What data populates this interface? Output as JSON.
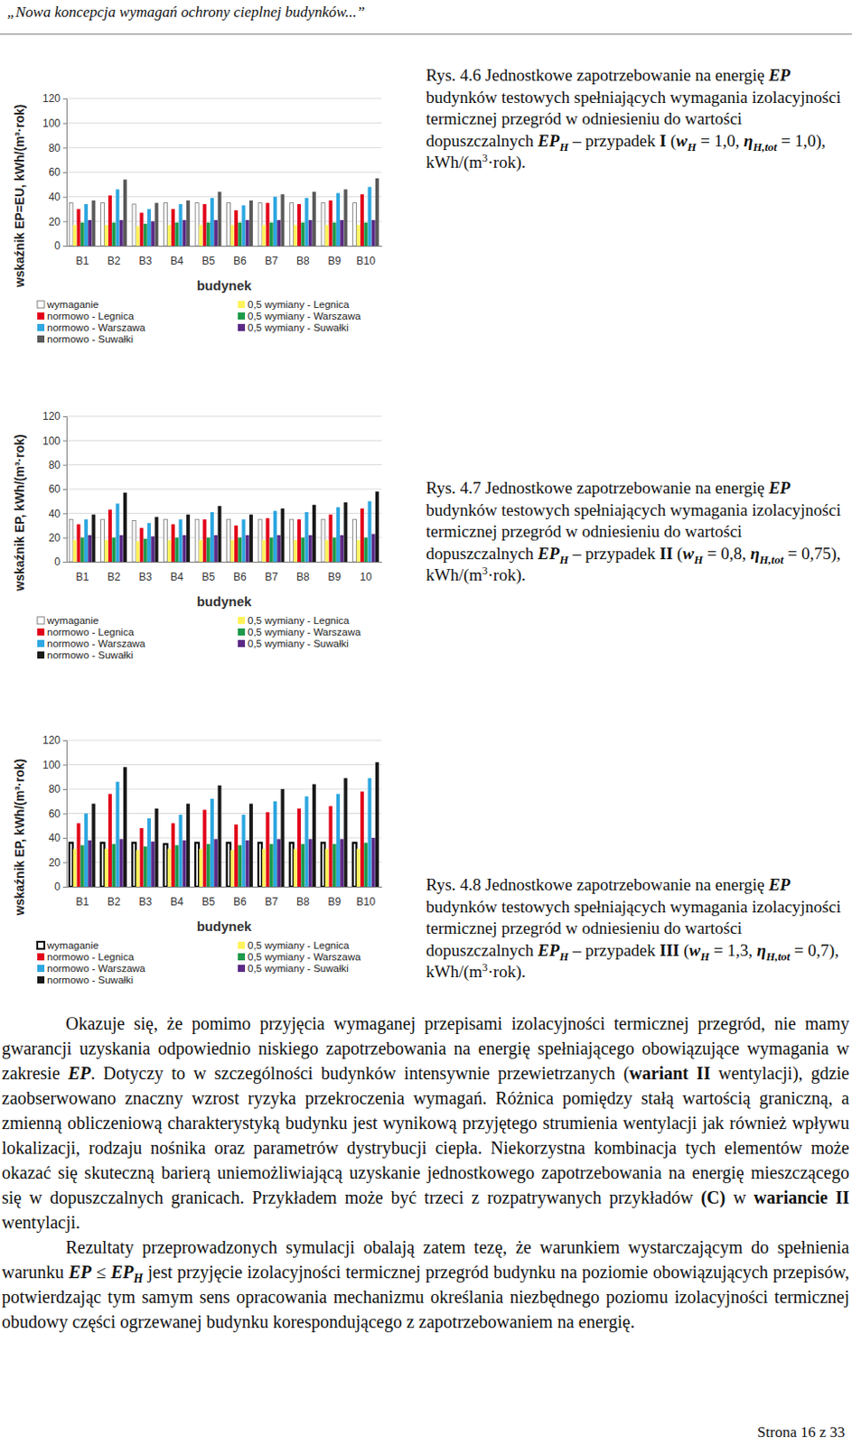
{
  "header": "„Nowa koncepcja wymagań ochrony cieplnej budynków...”",
  "chart_data": [
    {
      "type": "bar",
      "x_label": "budynek",
      "y_label": "wskaźnik EP=EU, kWh/(m³·rok)",
      "categories": [
        "B1",
        "B2",
        "B3",
        "B4",
        "B5",
        "B6",
        "B7",
        "B8",
        "B9",
        "B10"
      ],
      "ylim": [
        0,
        120
      ],
      "yticks": [
        0,
        20,
        40,
        60,
        80,
        100,
        120
      ],
      "grid": true,
      "legend": "bottom",
      "series": [
        {
          "name": "wymaganie",
          "color": "#ffffff",
          "values": [
            35,
            35,
            34,
            35,
            35,
            35,
            35,
            35,
            35,
            35
          ]
        },
        {
          "name": "normowo - Legnica",
          "color": "#e2001a",
          "values": [
            30,
            41,
            27,
            30,
            34,
            29,
            35,
            34,
            37,
            42
          ]
        },
        {
          "name": "normowo - Warszawa",
          "color": "#2ea7e0",
          "values": [
            34,
            46,
            30,
            34,
            39,
            33,
            40,
            39,
            43,
            48
          ]
        },
        {
          "name": "normowo - Suwałki",
          "color": "#5a5a5a",
          "values": [
            37,
            54,
            35,
            37,
            44,
            37,
            42,
            44,
            46,
            55
          ]
        },
        {
          "name": "0,5 wymiany - Legnica",
          "color": "#fff35c",
          "values": [
            17,
            17,
            16,
            17,
            17,
            17,
            17,
            17,
            17,
            17
          ]
        },
        {
          "name": "0,5 wymiany - Warszawa",
          "color": "#1e9a4b",
          "values": [
            19,
            19,
            18,
            19,
            19,
            19,
            19,
            19,
            19,
            19
          ]
        },
        {
          "name": "0,5 wymiany - Suwałki",
          "color": "#5b2a86",
          "values": [
            21,
            21,
            20,
            21,
            21,
            21,
            21,
            21,
            21,
            21
          ]
        }
      ]
    },
    {
      "type": "bar",
      "x_label": "budynek",
      "y_label": "wskaźnik EP, kWh/(m³·rok)",
      "categories": [
        "B1",
        "B2",
        "B3",
        "B4",
        "B5",
        "B6",
        "B7",
        "B8",
        "B9",
        "10"
      ],
      "ylim": [
        0,
        120
      ],
      "yticks": [
        0,
        20,
        40,
        60,
        80,
        100,
        120
      ],
      "grid": true,
      "legend": "bottom",
      "series": [
        {
          "name": "wymaganie",
          "color": "#ffffff",
          "values": [
            35,
            35,
            34,
            35,
            35,
            35,
            35,
            35,
            35,
            35
          ]
        },
        {
          "name": "normowo - Legnica",
          "color": "#e2001a",
          "values": [
            31,
            43,
            28,
            31,
            35,
            30,
            36,
            35,
            39,
            44
          ]
        },
        {
          "name": "normowo - Warszawa",
          "color": "#2ea7e0",
          "values": [
            35,
            48,
            32,
            35,
            41,
            35,
            42,
            41,
            45,
            50
          ]
        },
        {
          "name": "normowo - Suwałki",
          "color": "#1a1a1a",
          "values": [
            39,
            57,
            37,
            39,
            46,
            39,
            44,
            47,
            49,
            58
          ]
        },
        {
          "name": "0,5 wymiany - Legnica",
          "color": "#fff35c",
          "values": [
            18,
            18,
            17,
            18,
            18,
            18,
            18,
            18,
            18,
            18
          ]
        },
        {
          "name": "0,5 wymiany - Warszawa",
          "color": "#1e9a4b",
          "values": [
            20,
            20,
            19,
            20,
            20,
            20,
            20,
            20,
            20,
            20
          ]
        },
        {
          "name": "0,5 wymiany - Suwałki",
          "color": "#5b2a86",
          "values": [
            22,
            22,
            21,
            22,
            22,
            22,
            22,
            22,
            22,
            23
          ]
        }
      ]
    },
    {
      "type": "bar",
      "x_label": "budynek",
      "y_label": "wskaźnik EP, kWh/(m³·rok)",
      "categories": [
        "B1",
        "B2",
        "B3",
        "B4",
        "B5",
        "B6",
        "B7",
        "B8",
        "B9",
        "B10"
      ],
      "ylim": [
        0,
        120
      ],
      "yticks": [
        0,
        20,
        40,
        60,
        80,
        100,
        120
      ],
      "grid": true,
      "legend": "bottom",
      "series": [
        {
          "name": "wymaganie",
          "color": "#ffffff",
          "values": [
            36,
            36,
            36,
            35,
            36,
            36,
            36,
            36,
            36,
            36
          ]
        },
        {
          "name": "normowo - Legnica",
          "color": "#e2001a",
          "values": [
            52,
            76,
            48,
            52,
            63,
            51,
            61,
            64,
            66,
            78
          ]
        },
        {
          "name": "normowo - Warszawa",
          "color": "#2ea7e0",
          "values": [
            60,
            86,
            56,
            59,
            72,
            59,
            70,
            74,
            76,
            89
          ]
        },
        {
          "name": "normowo - Suwałki",
          "color": "#1a1a1a",
          "values": [
            68,
            98,
            64,
            68,
            83,
            68,
            80,
            84,
            89,
            102
          ]
        },
        {
          "name": "0,5 wymiany - Legnica",
          "color": "#fff35c",
          "values": [
            31,
            31,
            30,
            31,
            31,
            30,
            31,
            31,
            31,
            31
          ]
        },
        {
          "name": "0,5 wymiany - Warszawa",
          "color": "#1e9a4b",
          "values": [
            34,
            35,
            33,
            34,
            35,
            34,
            35,
            35,
            35,
            36
          ]
        },
        {
          "name": "0,5 wymiany - Suwałki",
          "color": "#5b2a86",
          "values": [
            38,
            39,
            37,
            38,
            39,
            38,
            39,
            39,
            39,
            40
          ]
        }
      ]
    }
  ],
  "captions": [
    [
      {
        "text": "Rys. 4.6 Jednostkowe zapotrzebowanie na energię "
      },
      {
        "text": "EP",
        "style": "bold-italic"
      },
      {
        "text": " budynków testowych spełniających wymagania izolacyjności termicznej przegród w odniesieniu do wartości dopuszczalnych "
      },
      {
        "text": "EP",
        "style": "bold-italic"
      },
      {
        "text": "H",
        "style": "bold-italic-sub"
      },
      {
        "text": " – przypadek "
      },
      {
        "text": "I",
        "style": "bold"
      },
      {
        "text": " ("
      },
      {
        "text": "w",
        "style": "bold-italic"
      },
      {
        "text": "H",
        "style": "bold-italic-sub"
      },
      {
        "text": " = 1,0, "
      },
      {
        "text": "η",
        "style": "bold-italic"
      },
      {
        "text": "H,tot",
        "style": "bold-italic-sub"
      },
      {
        "text": " = 1,0), kWh/(m"
      },
      {
        "text": "3",
        "style": "sup"
      },
      {
        "text": "·rok)."
      }
    ],
    [
      {
        "text": "Rys. 4.7 Jednostkowe zapotrzebowanie na energię "
      },
      {
        "text": "EP",
        "style": "bold-italic"
      },
      {
        "text": " budynków testowych spełniających wymagania izolacyjności termicznej przegród w odniesieniu do wartości dopuszczalnych "
      },
      {
        "text": "EP",
        "style": "bold-italic"
      },
      {
        "text": "H",
        "style": "bold-italic-sub"
      },
      {
        "text": " – przypadek "
      },
      {
        "text": "II",
        "style": "bold"
      },
      {
        "text": " ("
      },
      {
        "text": "w",
        "style": "bold-italic"
      },
      {
        "text": "H",
        "style": "bold-italic-sub"
      },
      {
        "text": " = 0,8, "
      },
      {
        "text": "η",
        "style": "bold-italic"
      },
      {
        "text": "H,tot",
        "style": "bold-italic-sub"
      },
      {
        "text": " = 0,75), kWh/(m"
      },
      {
        "text": "3",
        "style": "sup"
      },
      {
        "text": "·rok)."
      }
    ],
    [
      {
        "text": "Rys. 4.8 Jednostkowe zapotrzebowanie na energię "
      },
      {
        "text": "EP",
        "style": "bold-italic"
      },
      {
        "text": " budynków testowych spełniających wymagania izolacyjności termicznej przegród w odniesieniu do wartości dopuszczalnych "
      },
      {
        "text": "EP",
        "style": "bold-italic"
      },
      {
        "text": "H",
        "style": "bold-italic-sub"
      },
      {
        "text": " – przypadek "
      },
      {
        "text": "III",
        "style": "bold"
      },
      {
        "text": " ("
      },
      {
        "text": "w",
        "style": "bold-italic"
      },
      {
        "text": "H",
        "style": "bold-italic-sub"
      },
      {
        "text": " = 1,3, "
      },
      {
        "text": "η",
        "style": "bold-italic"
      },
      {
        "text": "H,tot",
        "style": "bold-italic-sub"
      },
      {
        "text": " = 0,7), kWh/(m"
      },
      {
        "text": "3",
        "style": "sup"
      },
      {
        "text": "·rok)."
      }
    ]
  ],
  "paragraphs": [
    [
      {
        "text": "Okazuje się, że pomimo przyjęcia wymaganej przepisami izolacyjności termicznej przegród, nie mamy gwarancji uzyskania odpowiednio niskiego zapotrzebowania na energię spełniającego obowiązujące wymagania w zakresie "
      },
      {
        "text": "EP",
        "style": "bold-italic"
      },
      {
        "text": ". Dotyczy to w szczególności budynków intensywnie przewietrzanych ("
      },
      {
        "text": "wariant II",
        "style": "bold"
      },
      {
        "text": " wentylacji), gdzie zaobserwowano znaczny wzrost ryzyka przekroczenia wymagań. Różnica pomiędzy stałą wartością graniczną, a zmienną obliczeniową charakterystyką budynku jest wynikową przyjętego strumienia wentylacji jak również wpływu lokalizacji, rodzaju nośnika oraz parametrów dystrybucji ciepła. Niekorzystna kombinacja tych elementów może okazać się skuteczną barierą uniemożliwiającą uzyskanie jednostkowego zapotrzebowania na energię mieszczącego się w dopuszczalnych granicach. Przykładem może być trzeci z rozpatrywanych przykładów "
      },
      {
        "text": "(C)",
        "style": "bold"
      },
      {
        "text": " w "
      },
      {
        "text": "wariancie II",
        "style": "bold"
      },
      {
        "text": " wentylacji."
      }
    ],
    [
      {
        "text": "Rezultaty przeprowadzonych symulacji obalają zatem tezę, że warunkiem wystarczającym do spełnienia warunku "
      },
      {
        "text": "EP",
        "style": "bold-italic"
      },
      {
        "text": " ≤ "
      },
      {
        "text": "EP",
        "style": "bold-italic"
      },
      {
        "text": "H",
        "style": "bold-italic-sub"
      },
      {
        "text": " jest przyjęcie izolacyjności termicznej przegród budynku na poziomie obowiązujących przepisów, potwierdzając tym samym sens opracowania mechanizmu określania niezbędnego poziomu izolacyjności termicznej obudowy części ogrzewanej budynku korespondującego z zapotrzebowaniem na energię."
      }
    ]
  ],
  "footer": "Strona 16 z 33"
}
